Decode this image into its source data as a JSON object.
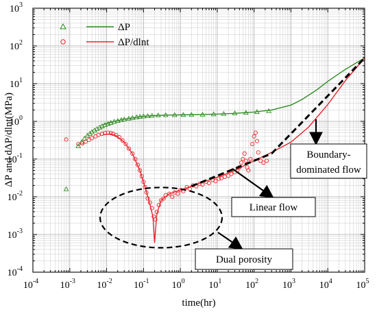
{
  "chart_data": {
    "type": "line",
    "title": "",
    "xlabel": "time(hr)",
    "ylabel": "ΔP and dΔP/dlnt(MPa)",
    "x_scale": "log",
    "y_scale": "log",
    "xlim": [
      0.0001,
      100000
    ],
    "ylim": [
      0.0001,
      1000
    ],
    "grid": true,
    "legend_position": "top-left",
    "x_tick_exponents": [
      "-4",
      "-3",
      "-2",
      "-1",
      "0",
      "1",
      "2",
      "3",
      "4",
      "5"
    ],
    "y_tick_exponents": [
      "-4",
      "-3",
      "-2",
      "-1",
      "0",
      "1",
      "2",
      "3"
    ],
    "tick_base": "10",
    "colors": {
      "dP": "#2e8b22",
      "dPdlnt": "#e8242a",
      "fit": "#000000"
    },
    "series": [
      {
        "name": "ΔP",
        "marker": "triangle",
        "measured": [
          [
            0.0008,
            0.016
          ],
          [
            0.0017,
            0.22
          ],
          [
            0.0021,
            0.28
          ],
          [
            0.0025,
            0.35
          ],
          [
            0.003,
            0.42
          ],
          [
            0.0035,
            0.47
          ],
          [
            0.004,
            0.52
          ],
          [
            0.0047,
            0.58
          ],
          [
            0.0055,
            0.63
          ],
          [
            0.0065,
            0.69
          ],
          [
            0.0075,
            0.74
          ],
          [
            0.009,
            0.8
          ],
          [
            0.011,
            0.86
          ],
          [
            0.013,
            0.92
          ],
          [
            0.016,
            0.98
          ],
          [
            0.02,
            1.03
          ],
          [
            0.025,
            1.09
          ],
          [
            0.03,
            1.13
          ],
          [
            0.04,
            1.19
          ],
          [
            0.05,
            1.24
          ],
          [
            0.065,
            1.29
          ],
          [
            0.08,
            1.33
          ],
          [
            0.1,
            1.36
          ],
          [
            0.13,
            1.39
          ],
          [
            0.17,
            1.42
          ],
          [
            0.25,
            1.45
          ],
          [
            0.4,
            1.47
          ],
          [
            0.7,
            1.48
          ],
          [
            1.2,
            1.49
          ],
          [
            2,
            1.5
          ],
          [
            4,
            1.52
          ],
          [
            8,
            1.55
          ],
          [
            15,
            1.59
          ],
          [
            30,
            1.64
          ],
          [
            60,
            1.7
          ],
          [
            120,
            1.78
          ],
          [
            250,
            1.88
          ]
        ],
        "model": [
          [
            0.008,
            0.82
          ],
          [
            0.015,
            0.98
          ],
          [
            0.03,
            1.14
          ],
          [
            0.06,
            1.27
          ],
          [
            0.1,
            1.36
          ],
          [
            0.2,
            1.43
          ],
          [
            0.5,
            1.47
          ],
          [
            1,
            1.49
          ],
          [
            3,
            1.51
          ],
          [
            10,
            1.56
          ],
          [
            30,
            1.63
          ],
          [
            100,
            1.77
          ],
          [
            300,
            2.0
          ],
          [
            1000,
            2.7
          ],
          [
            2000,
            3.8
          ],
          [
            5000,
            6.8
          ],
          [
            10000,
            11.5
          ],
          [
            30000,
            24
          ],
          [
            100000,
            48
          ]
        ]
      },
      {
        "name": "ΔP/dlnt",
        "marker": "circle",
        "measured": [
          [
            0.0008,
            0.33
          ],
          [
            0.0017,
            0.25
          ],
          [
            0.0022,
            0.26
          ],
          [
            0.0027,
            0.29
          ],
          [
            0.0033,
            0.32
          ],
          [
            0.004,
            0.36
          ],
          [
            0.005,
            0.4
          ],
          [
            0.006,
            0.44
          ],
          [
            0.0075,
            0.47
          ],
          [
            0.009,
            0.49
          ],
          [
            0.011,
            0.5
          ],
          [
            0.013,
            0.49
          ],
          [
            0.015,
            0.47
          ],
          [
            0.018,
            0.43
          ],
          [
            0.022,
            0.38
          ],
          [
            0.027,
            0.31
          ],
          [
            0.033,
            0.25
          ],
          [
            0.04,
            0.19
          ],
          [
            0.05,
            0.14
          ],
          [
            0.06,
            0.1
          ],
          [
            0.07,
            0.07
          ],
          [
            0.08,
            0.05
          ],
          [
            0.09,
            0.035
          ],
          [
            0.1,
            0.025
          ],
          [
            0.11,
            0.018
          ],
          [
            0.12,
            0.013
          ],
          [
            0.13,
            0.009
          ],
          [
            0.15,
            0.007
          ],
          [
            0.17,
            0.005
          ],
          [
            0.19,
            0.003
          ],
          [
            0.21,
            0.0025
          ],
          [
            0.23,
            0.004
          ],
          [
            0.26,
            0.006
          ],
          [
            0.3,
            0.008
          ],
          [
            0.35,
            0.009
          ],
          [
            0.4,
            0.011
          ],
          [
            0.5,
            0.012
          ],
          [
            0.6,
            0.01
          ],
          [
            0.7,
            0.013
          ],
          [
            0.85,
            0.012
          ],
          [
            1,
            0.015
          ],
          [
            1.2,
            0.014
          ],
          [
            1.5,
            0.018
          ],
          [
            1.8,
            0.016
          ],
          [
            2.2,
            0.02
          ],
          [
            2.7,
            0.019
          ],
          [
            3.3,
            0.022
          ],
          [
            4,
            0.021
          ],
          [
            5,
            0.025
          ],
          [
            6,
            0.023
          ],
          [
            7.5,
            0.028
          ],
          [
            9,
            0.026
          ],
          [
            11,
            0.03
          ],
          [
            13,
            0.031
          ],
          [
            16,
            0.034
          ],
          [
            20,
            0.036
          ],
          [
            24,
            0.04
          ],
          [
            30,
            0.045
          ],
          [
            35,
            0.05
          ],
          [
            40,
            0.06
          ],
          [
            45,
            0.08
          ],
          [
            50,
            0.1
          ],
          [
            55,
            0.14
          ],
          [
            60,
            0.09
          ],
          [
            65,
            0.06
          ],
          [
            70,
            0.05
          ],
          [
            80,
            0.1
          ],
          [
            90,
            0.25
          ],
          [
            100,
            0.4
          ],
          [
            110,
            0.5
          ],
          [
            120,
            0.3
          ],
          [
            130,
            0.15
          ],
          [
            150,
            0.09
          ],
          [
            180,
            0.08
          ],
          [
            220,
            0.09
          ]
        ],
        "model": [
          [
            0.008,
            0.44
          ],
          [
            0.012,
            0.46
          ],
          [
            0.018,
            0.42
          ],
          [
            0.03,
            0.28
          ],
          [
            0.05,
            0.14
          ],
          [
            0.08,
            0.05
          ],
          [
            0.11,
            0.018
          ],
          [
            0.14,
            0.008
          ],
          [
            0.18,
            0.003
          ],
          [
            0.2,
            0.0006
          ],
          [
            0.23,
            0.0035
          ],
          [
            0.3,
            0.008
          ],
          [
            0.5,
            0.012
          ],
          [
            1,
            0.015
          ],
          [
            3,
            0.022
          ],
          [
            10,
            0.033
          ],
          [
            30,
            0.05
          ],
          [
            100,
            0.09
          ],
          [
            300,
            0.15
          ],
          [
            1000,
            0.28
          ],
          [
            3000,
            0.7
          ],
          [
            10000,
            2.8
          ],
          [
            30000,
            12
          ],
          [
            100000,
            48
          ]
        ]
      }
    ],
    "fit_lines": [
      {
        "x": [
          2,
          300
        ],
        "y": [
          0.019,
          0.14
        ]
      },
      {
        "x": [
          300,
          100000
        ],
        "y": [
          0.14,
          48
        ]
      }
    ],
    "annotations": [
      {
        "text_lines": [
          "Boundary-",
          "dominated flow"
        ],
        "target": [
          5000,
          2
        ]
      },
      {
        "text_lines": [
          "Linear flow"
        ],
        "target": [
          35,
          0.06
        ]
      },
      {
        "text_lines": [
          "Dual porosity"
        ],
        "target": [
          0.3,
          0.002
        ]
      }
    ]
  }
}
